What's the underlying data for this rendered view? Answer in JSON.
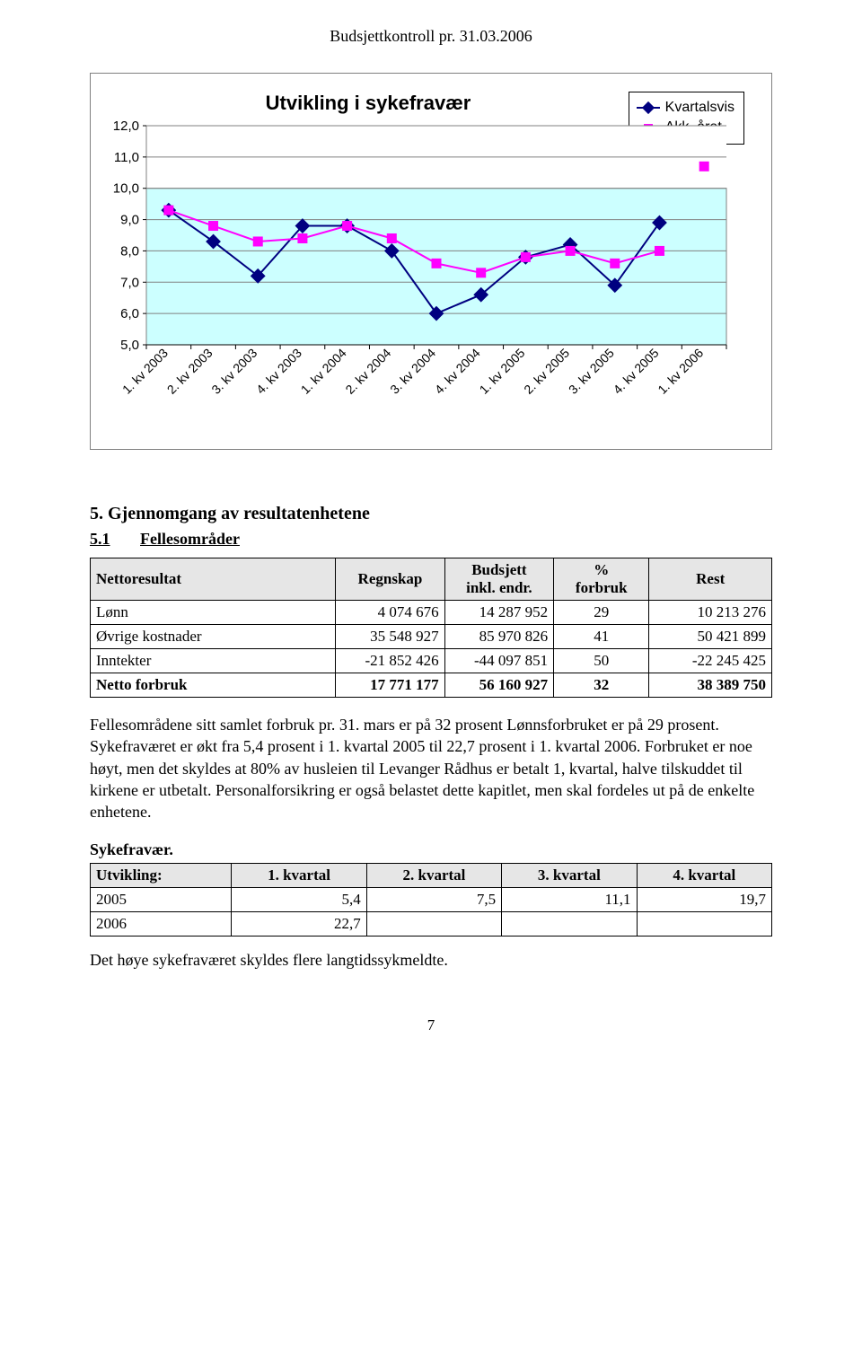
{
  "doc": {
    "title": "Budsjettkontroll pr. 31.03.2006",
    "page_number": "7"
  },
  "chart": {
    "type": "line",
    "title": "Utvikling i sykefravær",
    "title_fontsize": 22,
    "font_family": "Arial",
    "categories": [
      "1. kv 2003",
      "2. kv 2003",
      "3. kv 2003",
      "4. kv 2003",
      "1. kv 2004",
      "2. kv 2004",
      "3. kv 2004",
      "4. kv 2004",
      "1. kv 2005",
      "2. kv 2005",
      "3. kv 2005",
      "4. kv 2005",
      "1. kv 2006"
    ],
    "series": [
      {
        "name": "Kvartalsvis",
        "color": "#000080",
        "marker": "diamond",
        "marker_fill": "#000080",
        "line_width": 2,
        "values": [
          9.3,
          8.3,
          7.2,
          8.8,
          8.8,
          8.0,
          6.0,
          6.6,
          7.8,
          8.2,
          6.9,
          8.9,
          null
        ]
      },
      {
        "name": "Akk. året",
        "color": "#ff00ff",
        "marker": "square",
        "marker_fill": "#ff00ff",
        "line_width": 2,
        "values": [
          9.3,
          8.8,
          8.3,
          8.4,
          8.8,
          8.4,
          7.6,
          7.3,
          7.8,
          8.0,
          7.6,
          8.0,
          null
        ],
        "isolated_points": [
          {
            "category_index": 12,
            "value": 10.7
          }
        ]
      }
    ],
    "ylim": [
      5.0,
      12.0
    ],
    "ytick_step": 1.0,
    "y_labels": [
      "5,0",
      "6,0",
      "7,0",
      "8,0",
      "9,0",
      "10,0",
      "11,0",
      "12,0"
    ],
    "plot_background": "#ccffff",
    "gridline_color": "#808080",
    "chart_border_color": "#808080",
    "axis_color": "#000000",
    "legend": {
      "position": "top-right",
      "border_color": "#000000",
      "background": "#ffffff",
      "fontsize": 16
    },
    "x_label_rotation": 45,
    "marker_size": 10
  },
  "section5": {
    "heading": "5. Gjennomgang av resultatenhetene",
    "subheading_num": "5.1",
    "subheading_text": "Fellesområder"
  },
  "netto_table": {
    "columns": [
      "Nettoresultat",
      "Regnskap",
      "Budsjett inkl. endr.",
      "% forbruk",
      "Rest"
    ],
    "col_budsjett_line1": "Budsjett",
    "col_budsjett_line2": "inkl. endr.",
    "col_pct_line1": "%",
    "col_pct_line2": "forbruk",
    "col_widths_pct": [
      36,
      16,
      16,
      14,
      18
    ],
    "header_bg": "#e6e6e6",
    "rows": [
      {
        "label": "Lønn",
        "regnskap": "4 074 676",
        "budsjett": "14 287 952",
        "pct": "29",
        "rest": "10 213 276",
        "bold": false
      },
      {
        "label": "Øvrige kostnader",
        "regnskap": "35 548 927",
        "budsjett": "85 970 826",
        "pct": "41",
        "rest": "50 421 899",
        "bold": false
      },
      {
        "label": "Inntekter",
        "regnskap": "-21 852 426",
        "budsjett": "-44 097 851",
        "pct": "50",
        "rest": "-22 245 425",
        "bold": false
      },
      {
        "label": "Netto forbruk",
        "regnskap": "17 771 177",
        "budsjett": "56 160 927",
        "pct": "32",
        "rest": "38 389 750",
        "bold": true
      }
    ]
  },
  "paragraph1": "Fellesområdene sitt samlet forbruk pr. 31. mars er på 32 prosent  Lønnsforbruket er på 29 prosent. Sykefraværet er økt fra 5,4 prosent i 1. kvartal 2005 til 22,7 prosent i 1. kvartal 2006. Forbruket er noe høyt, men det skyldes at 80% av husleien til Levanger Rådhus er betalt 1, kvartal, halve tilskuddet til kirkene er utbetalt.  Personalforsikring er også belastet dette kapitlet, men skal fordeles ut på de enkelte enhetene.",
  "sykefravaer": {
    "heading": "Sykefravær.",
    "columns": [
      "Utvikling:",
      "1. kvartal",
      "2. kvartal",
      "3. kvartal",
      "4. kvartal"
    ],
    "header_bg": "#e6e6e6",
    "rows": [
      {
        "year": "2005",
        "q1": "5,4",
        "q2": "7,5",
        "q3": "11,1",
        "q4": "19,7"
      },
      {
        "year": "2006",
        "q1": "22,7",
        "q2": "",
        "q3": "",
        "q4": ""
      }
    ]
  },
  "paragraph2": "Det høye sykefraværet skyldes flere langtidssykmeldte."
}
